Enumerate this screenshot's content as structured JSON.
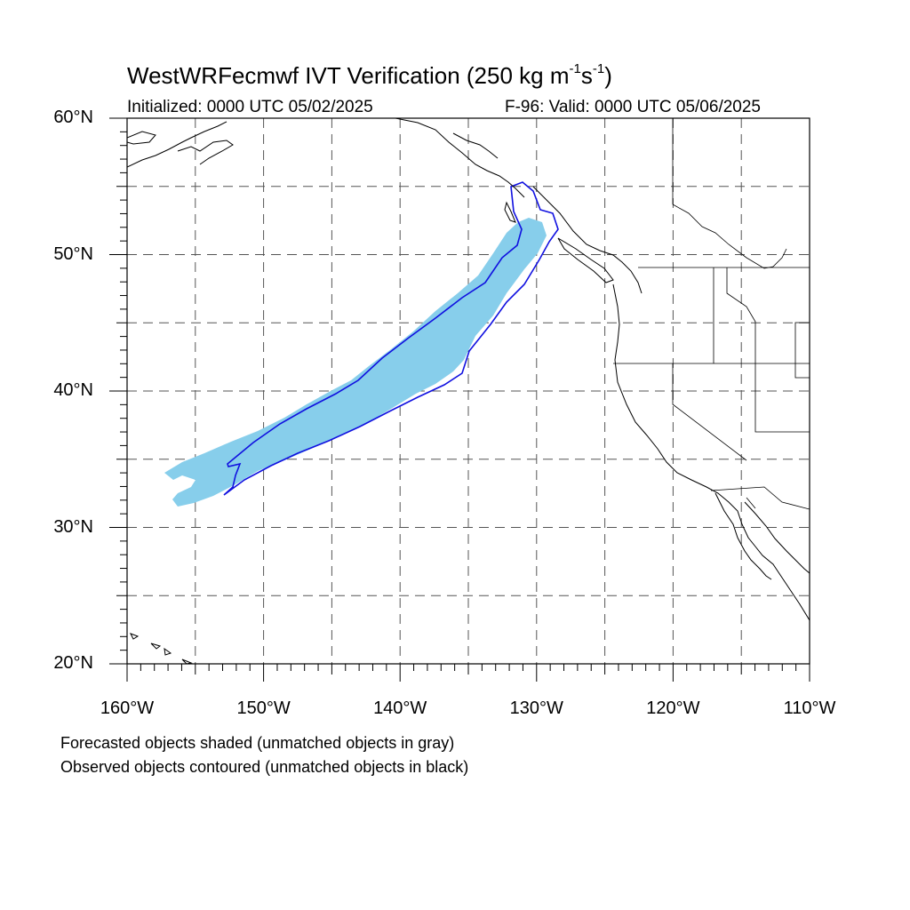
{
  "title": {
    "main": "WestWRFecmwf IVT Verification (250 kg m",
    "sup1": "-1",
    "mid": "s",
    "sup2": "-1",
    "end": ")"
  },
  "initialized": "Initialized: 0000 UTC 05/02/2025",
  "valid": "F-96: Valid: 0000 UTC 05/06/2025",
  "lat_labels": [
    "60°N",
    "50°N",
    "40°N",
    "30°N",
    "20°N"
  ],
  "lon_labels": [
    "160°W",
    "150°W",
    "140°W",
    "130°W",
    "120°W",
    "110°W"
  ],
  "notes": [
    "Forecasted objects shaded (unmatched objects in gray)",
    "Observed objects contoured (unmatched objects in black)"
  ],
  "colors": {
    "forecast_fill": "#87ceeb",
    "observed_contour": "#1010e0",
    "coastline": "#000000",
    "grid": "#555555"
  },
  "map": {
    "lon_range": [
      -160,
      -110
    ],
    "lat_range": [
      20,
      60
    ],
    "grid_step_deg": 5,
    "grid_style": "dashed"
  }
}
